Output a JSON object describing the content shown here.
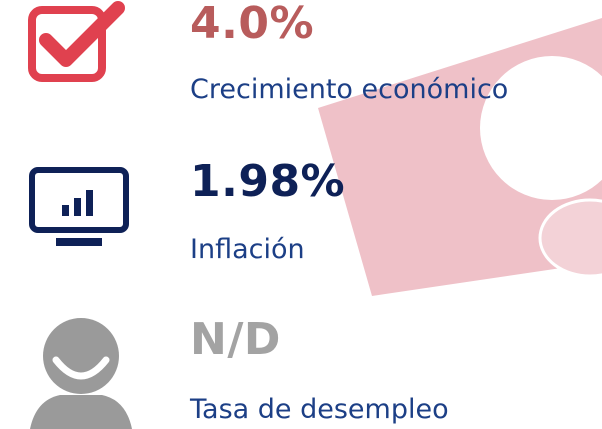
{
  "items": [
    {
      "value": "4.0%",
      "label": "Crecimiento económico"
    },
    {
      "value": "1.98%",
      "label": "Inflación"
    },
    {
      "value": "N/D",
      "label": "Tasa de desempleo"
    }
  ]
}
